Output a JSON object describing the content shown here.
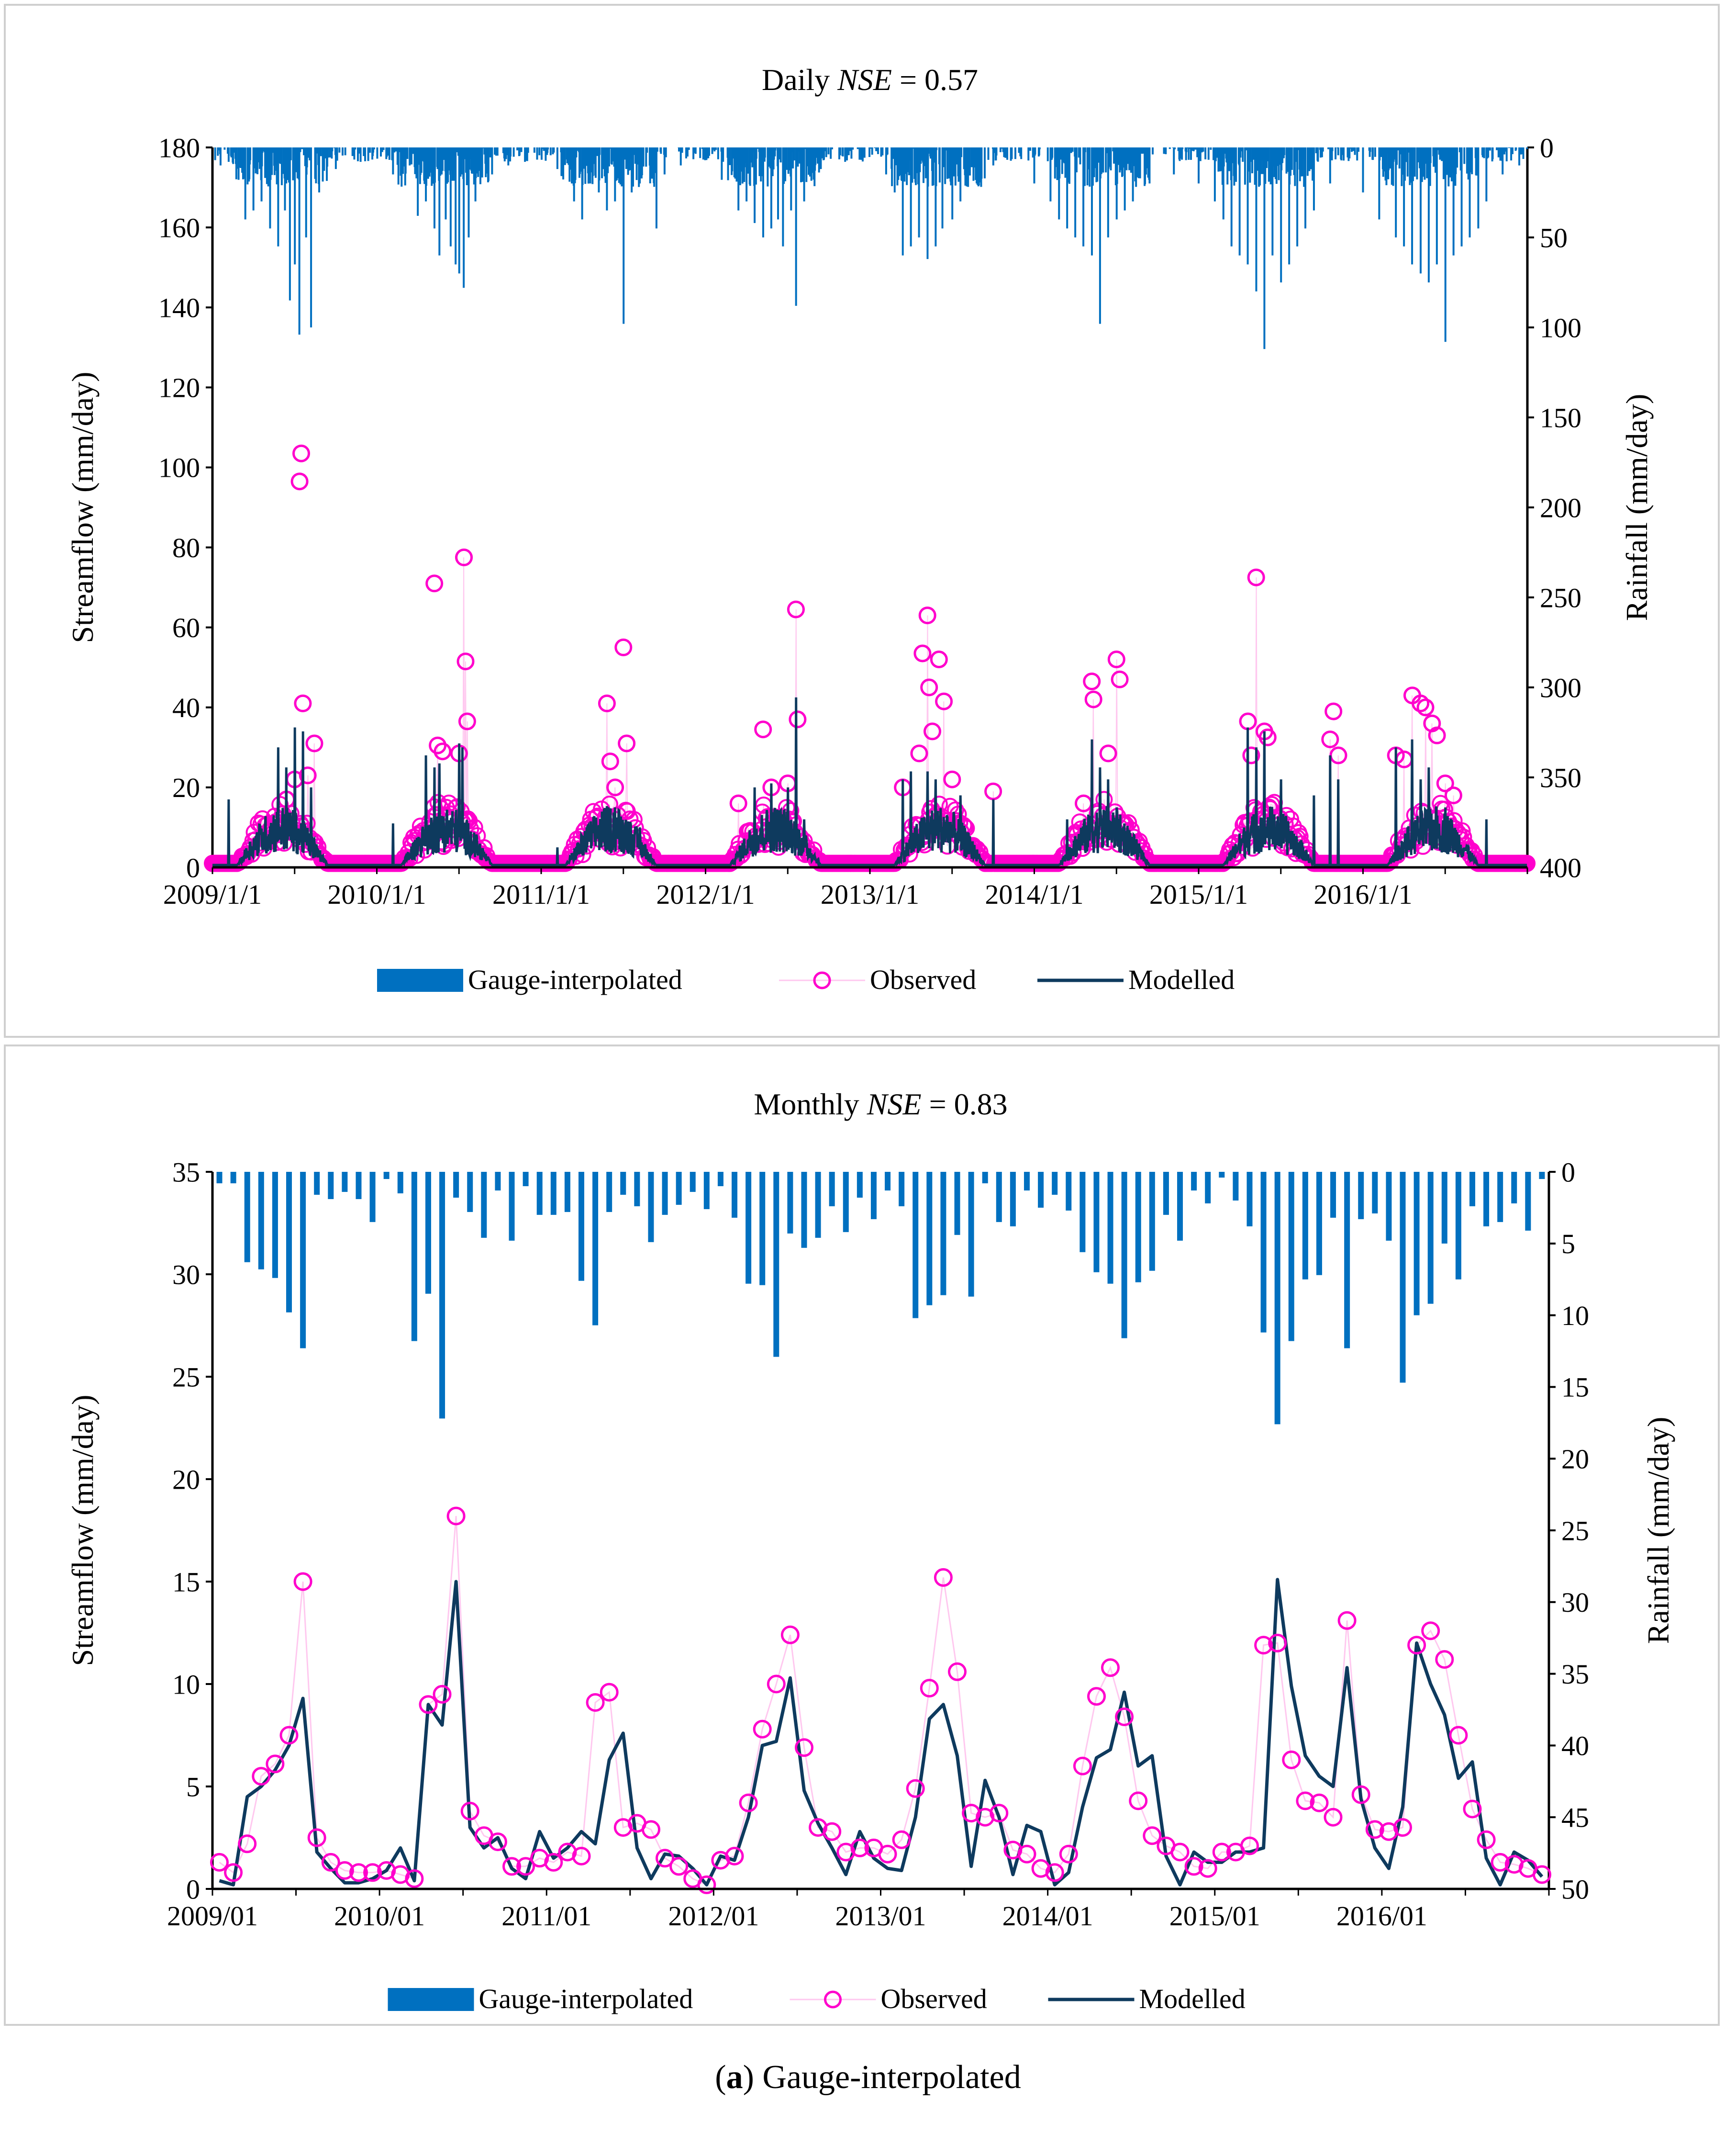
{
  "caption": {
    "label": "a",
    "text": "Gauge-interpolated"
  },
  "colors": {
    "rain": "#0070c0",
    "observed": "#ff00cc",
    "observed_line": "#ffc8ef",
    "modelled": "#0e3a5e"
  },
  "chart_data": [
    {
      "type": "line",
      "id": "daily",
      "title_prefix": "Daily",
      "title_metric": "NSE",
      "title_suffix": " = 0.57",
      "ylabel": "Streamflow (mm/day)",
      "y2label": "Rainfall (mm/day)",
      "ylim": [
        0,
        180
      ],
      "yticks": [
        0,
        20,
        40,
        60,
        80,
        100,
        120,
        140,
        160,
        180
      ],
      "y2lim": [
        0,
        400
      ],
      "y2ticks": [
        0,
        50,
        100,
        150,
        200,
        250,
        300,
        350,
        400
      ],
      "y2_inverted": true,
      "xlim": [
        2009.0,
        2017.0
      ],
      "xticks": [
        2009.0,
        2010.0,
        2011.0,
        2012.0,
        2013.0,
        2014.0,
        2015.0,
        2016.0
      ],
      "xtick_labels": [
        "2009/1/1",
        "2010/1/1",
        "2011/1/1",
        "2012/1/1",
        "2013/1/1",
        "2014/1/1",
        "2015/1/1",
        "2016/1/1"
      ],
      "legend": [
        "Gauge-interpolated",
        "Observed",
        "Modelled"
      ],
      "rain_peaks": [
        [
          2009.05,
          10
        ],
        [
          2009.1,
          8
        ],
        [
          2009.16,
          18
        ],
        [
          2009.2,
          40
        ],
        [
          2009.25,
          35
        ],
        [
          2009.3,
          30
        ],
        [
          2009.35,
          45
        ],
        [
          2009.4,
          55
        ],
        [
          2009.44,
          35
        ],
        [
          2009.47,
          85
        ],
        [
          2009.5,
          65
        ],
        [
          2009.53,
          104
        ],
        [
          2009.57,
          50
        ],
        [
          2009.6,
          100
        ],
        [
          2009.65,
          25
        ],
        [
          2009.75,
          12
        ],
        [
          2009.9,
          8
        ],
        [
          2010.1,
          15
        ],
        [
          2010.2,
          10
        ],
        [
          2010.25,
          38
        ],
        [
          2010.3,
          30
        ],
        [
          2010.35,
          45
        ],
        [
          2010.38,
          60
        ],
        [
          2010.42,
          40
        ],
        [
          2010.45,
          55
        ],
        [
          2010.48,
          65
        ],
        [
          2010.5,
          70
        ],
        [
          2010.53,
          78
        ],
        [
          2010.56,
          50
        ],
        [
          2010.6,
          30
        ],
        [
          2010.7,
          15
        ],
        [
          2010.8,
          10
        ],
        [
          2010.9,
          8
        ],
        [
          2011.1,
          12
        ],
        [
          2011.2,
          30
        ],
        [
          2011.25,
          40
        ],
        [
          2011.3,
          20
        ],
        [
          2011.35,
          25
        ],
        [
          2011.4,
          35
        ],
        [
          2011.45,
          30
        ],
        [
          2011.5,
          98
        ],
        [
          2011.55,
          25
        ],
        [
          2011.6,
          20
        ],
        [
          2011.7,
          45
        ],
        [
          2011.75,
          15
        ],
        [
          2011.85,
          10
        ],
        [
          2012.1,
          18
        ],
        [
          2012.2,
          35
        ],
        [
          2012.25,
          30
        ],
        [
          2012.3,
          42
        ],
        [
          2012.35,
          50
        ],
        [
          2012.4,
          45
        ],
        [
          2012.44,
          40
        ],
        [
          2012.47,
          55
        ],
        [
          2012.52,
          35
        ],
        [
          2012.55,
          88
        ],
        [
          2012.6,
          30
        ],
        [
          2012.7,
          12
        ],
        [
          2012.85,
          8
        ],
        [
          2013.1,
          15
        ],
        [
          2013.15,
          25
        ],
        [
          2013.2,
          60
        ],
        [
          2013.25,
          55
        ],
        [
          2013.3,
          50
        ],
        [
          2013.35,
          62
        ],
        [
          2013.4,
          55
        ],
        [
          2013.44,
          45
        ],
        [
          2013.5,
          40
        ],
        [
          2013.55,
          30
        ],
        [
          2013.65,
          20
        ],
        [
          2013.75,
          10
        ],
        [
          2014.0,
          20
        ],
        [
          2014.1,
          30
        ],
        [
          2014.15,
          40
        ],
        [
          2014.2,
          45
        ],
        [
          2014.25,
          50
        ],
        [
          2014.3,
          55
        ],
        [
          2014.35,
          60
        ],
        [
          2014.4,
          98
        ],
        [
          2014.45,
          50
        ],
        [
          2014.5,
          40
        ],
        [
          2014.55,
          35
        ],
        [
          2014.6,
          30
        ],
        [
          2014.7,
          20
        ],
        [
          2014.85,
          15
        ],
        [
          2015.0,
          20
        ],
        [
          2015.1,
          30
        ],
        [
          2015.15,
          40
        ],
        [
          2015.2,
          55
        ],
        [
          2015.25,
          60
        ],
        [
          2015.3,
          65
        ],
        [
          2015.35,
          80
        ],
        [
          2015.4,
          112
        ],
        [
          2015.45,
          60
        ],
        [
          2015.5,
          75
        ],
        [
          2015.55,
          65
        ],
        [
          2015.6,
          55
        ],
        [
          2015.65,
          45
        ],
        [
          2015.7,
          35
        ],
        [
          2015.8,
          20
        ],
        [
          2016.0,
          25
        ],
        [
          2016.1,
          40
        ],
        [
          2016.2,
          50
        ],
        [
          2016.25,
          55
        ],
        [
          2016.3,
          65
        ],
        [
          2016.35,
          70
        ],
        [
          2016.4,
          75
        ],
        [
          2016.45,
          65
        ],
        [
          2016.5,
          108
        ],
        [
          2016.55,
          60
        ],
        [
          2016.6,
          55
        ],
        [
          2016.65,
          50
        ],
        [
          2016.7,
          45
        ],
        [
          2016.75,
          30
        ],
        [
          2016.85,
          15
        ],
        [
          2016.95,
          10
        ]
      ],
      "observed_peaks": [
        [
          2009.45,
          17
        ],
        [
          2009.5,
          22
        ],
        [
          2009.53,
          96.5
        ],
        [
          2009.54,
          103.5
        ],
        [
          2009.55,
          41
        ],
        [
          2009.58,
          23
        ],
        [
          2009.62,
          31
        ],
        [
          2010.35,
          71
        ],
        [
          2010.37,
          30.5
        ],
        [
          2010.4,
          29
        ],
        [
          2010.5,
          28.5
        ],
        [
          2010.53,
          77.5
        ],
        [
          2010.54,
          51.5
        ],
        [
          2010.55,
          36.5
        ],
        [
          2011.4,
          41
        ],
        [
          2011.42,
          26.5
        ],
        [
          2011.45,
          20
        ],
        [
          2011.5,
          55
        ],
        [
          2011.52,
          31
        ],
        [
          2012.2,
          16
        ],
        [
          2012.35,
          34.5
        ],
        [
          2012.4,
          20
        ],
        [
          2012.5,
          21
        ],
        [
          2012.55,
          64.5
        ],
        [
          2012.56,
          37
        ],
        [
          2013.2,
          20
        ],
        [
          2013.3,
          28.5
        ],
        [
          2013.32,
          53.5
        ],
        [
          2013.35,
          63
        ],
        [
          2013.36,
          45
        ],
        [
          2013.38,
          34
        ],
        [
          2013.42,
          52
        ],
        [
          2013.45,
          41.5
        ],
        [
          2013.5,
          22
        ],
        [
          2013.75,
          19
        ],
        [
          2014.3,
          16
        ],
        [
          2014.35,
          46.5
        ],
        [
          2014.36,
          42
        ],
        [
          2014.45,
          28.5
        ],
        [
          2014.5,
          52
        ],
        [
          2014.52,
          47
        ],
        [
          2015.3,
          36.5
        ],
        [
          2015.32,
          28
        ],
        [
          2015.35,
          72.5
        ],
        [
          2015.4,
          34
        ],
        [
          2015.42,
          32.5
        ],
        [
          2015.8,
          32
        ],
        [
          2015.82,
          39
        ],
        [
          2015.85,
          28
        ],
        [
          2016.2,
          28
        ],
        [
          2016.25,
          27
        ],
        [
          2016.3,
          43
        ],
        [
          2016.35,
          41
        ],
        [
          2016.38,
          40
        ],
        [
          2016.42,
          36
        ],
        [
          2016.45,
          33
        ],
        [
          2016.5,
          21
        ],
        [
          2016.55,
          18
        ]
      ],
      "modelled_peaks": [
        [
          2009.1,
          17
        ],
        [
          2009.4,
          30
        ],
        [
          2009.45,
          25
        ],
        [
          2009.5,
          35
        ],
        [
          2009.55,
          34
        ],
        [
          2009.6,
          20
        ],
        [
          2010.1,
          11
        ],
        [
          2010.3,
          28
        ],
        [
          2010.35,
          25
        ],
        [
          2010.38,
          26
        ],
        [
          2010.5,
          31
        ],
        [
          2010.52,
          30
        ],
        [
          2011.1,
          5
        ],
        [
          2011.3,
          10
        ],
        [
          2011.45,
          15
        ],
        [
          2011.6,
          10
        ],
        [
          2012.3,
          20
        ],
        [
          2012.4,
          21
        ],
        [
          2012.5,
          20
        ],
        [
          2012.55,
          42.5
        ],
        [
          2012.6,
          12
        ],
        [
          2013.2,
          22
        ],
        [
          2013.25,
          24
        ],
        [
          2013.35,
          24
        ],
        [
          2013.4,
          22
        ],
        [
          2013.55,
          18
        ],
        [
          2013.75,
          17
        ],
        [
          2014.2,
          12
        ],
        [
          2014.35,
          32
        ],
        [
          2014.4,
          25
        ],
        [
          2014.45,
          22
        ],
        [
          2014.5,
          15
        ],
        [
          2015.3,
          35
        ],
        [
          2015.35,
          30
        ],
        [
          2015.4,
          34
        ],
        [
          2015.5,
          22
        ],
        [
          2015.7,
          18
        ],
        [
          2015.8,
          28
        ],
        [
          2015.85,
          22
        ],
        [
          2016.2,
          30
        ],
        [
          2016.3,
          32
        ],
        [
          2016.35,
          22
        ],
        [
          2016.4,
          25
        ],
        [
          2016.5,
          15
        ],
        [
          2016.75,
          12
        ]
      ]
    },
    {
      "type": "line",
      "id": "monthly",
      "title_prefix": "Monthly",
      "title_metric": "NSE",
      "title_suffix": " = 0.83",
      "ylabel": "Streamflow (mm/day)",
      "y2label": "Rainfall (mm/day)",
      "ylim": [
        0,
        35
      ],
      "yticks": [
        0,
        5,
        10,
        15,
        20,
        25,
        30,
        35
      ],
      "y2lim": [
        0,
        50
      ],
      "y2ticks": [
        0,
        5,
        10,
        15,
        20,
        25,
        30,
        35,
        40,
        45,
        50
      ],
      "y2_inverted": true,
      "xlim": [
        0,
        96
      ],
      "xticks": [
        0,
        12,
        24,
        36,
        48,
        60,
        72,
        84
      ],
      "xtick_labels": [
        "2009/01",
        "2010/01",
        "2011/01",
        "2012/01",
        "2013/01",
        "2014/01",
        "2015/01",
        "2016/01"
      ],
      "legend": [
        "Gauge-interpolated",
        "Observed",
        "Modelled"
      ],
      "rainfall": [
        0.8,
        0.8,
        6.3,
        6.8,
        7.4,
        9.8,
        12.3,
        1.6,
        1.9,
        1.4,
        1.9,
        3.5,
        0.5,
        1.5,
        11.8,
        8.5,
        17.2,
        1.8,
        2.8,
        4.6,
        1.3,
        4.8,
        1.0,
        3.0,
        3.0,
        2.8,
        7.6,
        10.7,
        2.8,
        1.6,
        2.4,
        4.9,
        3.0,
        2.3,
        1.4,
        2.6,
        1.0,
        3.2,
        7.8,
        7.9,
        12.9,
        4.3,
        5.3,
        4.6,
        2.4,
        4.2,
        1.8,
        3.3,
        1.3,
        2.4,
        10.2,
        9.3,
        8.6,
        4.4,
        8.7,
        0.8,
        3.5,
        3.8,
        1.3,
        2.5,
        1.6,
        2.7,
        5.6,
        7.0,
        7.8,
        11.6,
        7.7,
        6.9,
        3.0,
        4.8,
        1.3,
        2.2,
        0.4,
        2.0,
        3.8,
        11.2,
        17.6,
        11.8,
        7.5,
        7.2,
        3.2,
        12.3,
        3.3,
        2.9,
        4.8,
        14.7,
        10.0,
        9.2,
        5.0,
        7.5,
        2.4,
        3.8,
        3.5,
        2.2,
        4.1,
        0.5
      ],
      "observed": [
        1.3,
        0.8,
        2.2,
        5.5,
        6.1,
        7.5,
        15.0,
        2.5,
        1.3,
        0.9,
        0.8,
        0.8,
        0.9,
        0.7,
        0.5,
        9.0,
        9.5,
        18.2,
        3.8,
        2.6,
        2.3,
        1.1,
        1.1,
        1.5,
        1.3,
        1.8,
        1.6,
        9.1,
        9.6,
        3.0,
        3.2,
        2.9,
        1.5,
        1.1,
        0.5,
        0.2,
        1.4,
        1.6,
        4.2,
        7.8,
        10.0,
        12.4,
        6.9,
        3.0,
        2.8,
        1.8,
        2.0,
        2.0,
        1.7,
        2.4,
        4.9,
        9.8,
        15.2,
        10.6,
        3.7,
        3.5,
        3.7,
        1.9,
        1.7,
        1.0,
        0.8,
        1.7,
        6.0,
        9.4,
        10.8,
        8.4,
        4.3,
        2.6,
        2.1,
        1.8,
        1.1,
        1.0,
        1.8,
        1.8,
        2.1,
        11.9,
        12.0,
        6.3,
        4.3,
        4.2,
        3.5,
        13.1,
        4.6,
        2.9,
        2.8,
        3.0,
        11.9,
        12.6,
        11.2,
        7.5,
        3.9,
        2.4,
        1.3,
        1.2,
        1.0,
        0.7
      ],
      "modelled": [
        0.4,
        0.2,
        4.5,
        5.0,
        5.8,
        7.0,
        9.3,
        1.8,
        1.0,
        0.3,
        0.3,
        0.5,
        0.9,
        2.0,
        0.4,
        9.0,
        8.0,
        15.0,
        3.0,
        2.0,
        2.5,
        1.0,
        0.5,
        2.8,
        1.5,
        2.0,
        2.8,
        2.2,
        6.3,
        7.6,
        2.0,
        0.5,
        1.7,
        1.6,
        1.0,
        0.2,
        1.6,
        1.4,
        3.5,
        7.0,
        7.2,
        10.3,
        4.8,
        3.2,
        2.0,
        0.7,
        2.8,
        1.5,
        1.0,
        0.9,
        3.5,
        8.3,
        9.0,
        6.5,
        1.1,
        5.3,
        3.5,
        0.7,
        3.1,
        2.8,
        0.2,
        0.8,
        4.0,
        6.4,
        6.8,
        9.6,
        6.0,
        6.5,
        1.6,
        0.2,
        1.8,
        1.3,
        1.3,
        1.8,
        1.8,
        2.0,
        15.1,
        9.9,
        6.5,
        5.5,
        5.0,
        10.8,
        4.4,
        2.0,
        1.0,
        4.0,
        12.0,
        10.0,
        8.5,
        5.4,
        6.2,
        1.5,
        0.2,
        1.8,
        1.4,
        0.6
      ]
    }
  ]
}
